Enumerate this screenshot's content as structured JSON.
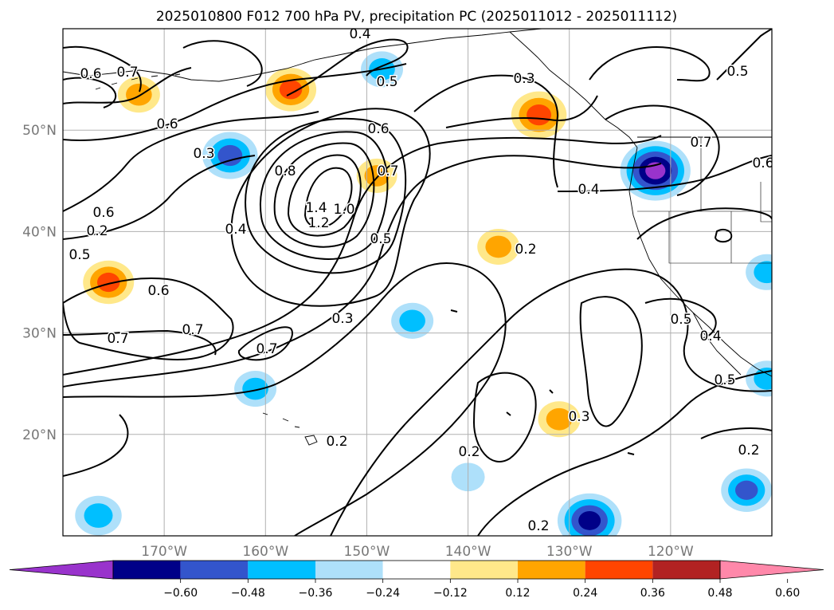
{
  "chart_data": {
    "type": "heatmap",
    "title": "2025010800 F012 700 hPa PV, precipitation PC (2025011012 - 2025011112)",
    "map": {
      "lon_range": [
        -180,
        -110
      ],
      "lat_range": [
        10,
        60
      ],
      "grid": true,
      "projection": "equirectangular"
    },
    "x_ticks": [
      {
        "value": -170,
        "label": "170°W"
      },
      {
        "value": -160,
        "label": "160°W"
      },
      {
        "value": -150,
        "label": "150°W"
      },
      {
        "value": -140,
        "label": "140°W"
      },
      {
        "value": -130,
        "label": "130°W"
      },
      {
        "value": -120,
        "label": "120°W"
      }
    ],
    "y_ticks": [
      {
        "value": 20,
        "label": "20°N"
      },
      {
        "value": 30,
        "label": "30°N"
      },
      {
        "value": 40,
        "label": "40°N"
      },
      {
        "value": 50,
        "label": "50°N"
      }
    ],
    "colorbar": {
      "location": "bottom",
      "extend": "both",
      "levels": [
        -0.6,
        -0.48,
        -0.36,
        -0.24,
        -0.12,
        0.12,
        0.24,
        0.36,
        0.48,
        0.6
      ],
      "labels": [
        "−0.60",
        "−0.48",
        "−0.36",
        "−0.24",
        "−0.12",
        "0.12",
        "0.24",
        "0.36",
        "0.48",
        "0.60"
      ],
      "colors": [
        "#9933cc",
        "#000088",
        "#3355cc",
        "#00bfff",
        "#aee0fa",
        "#ffffff",
        "#ffe88a",
        "#ffa500",
        "#ff4500",
        "#b22222",
        "#ff88aa"
      ]
    },
    "precip_anomalies": [
      {
        "lon": -172.5,
        "lat": 53.5,
        "value": 0.3
      },
      {
        "lon": -157.5,
        "lat": 54.0,
        "value": 0.4
      },
      {
        "lon": -163.5,
        "lat": 47.5,
        "value": -0.45
      },
      {
        "lon": -175.5,
        "lat": 35.0,
        "value": 0.4
      },
      {
        "lon": -148.5,
        "lat": 56.0,
        "value": -0.3
      },
      {
        "lon": -133.0,
        "lat": 51.5,
        "value": 0.45
      },
      {
        "lon": -121.5,
        "lat": 46.0,
        "value": -0.62
      },
      {
        "lon": -137.0,
        "lat": 38.5,
        "value": 0.3
      },
      {
        "lon": -149.0,
        "lat": 45.5,
        "value": 0.28
      },
      {
        "lon": -131.0,
        "lat": 21.5,
        "value": 0.3
      },
      {
        "lon": -161.0,
        "lat": 24.5,
        "value": -0.3
      },
      {
        "lon": -145.5,
        "lat": 31.2,
        "value": -0.3
      },
      {
        "lon": -128.0,
        "lat": 11.5,
        "value": -0.55
      },
      {
        "lon": -176.5,
        "lat": 12.0,
        "value": -0.35
      },
      {
        "lon": -112.5,
        "lat": 14.5,
        "value": -0.4
      },
      {
        "lon": -110.5,
        "lat": 36.0,
        "value": -0.3
      },
      {
        "lon": -110.5,
        "lat": 25.5,
        "value": -0.3
      },
      {
        "lon": -140.0,
        "lat": 15.8,
        "value": -0.2
      }
    ],
    "pv_contours": {
      "variable": "700 hPa PV",
      "labels_visible": [
        "0.2",
        "0.3",
        "0.4",
        "0.5",
        "0.6",
        "0.7",
        "0.8",
        "1.0",
        "1.2",
        "1.4"
      ],
      "maximum": {
        "lon": -155.5,
        "lat": 44.0,
        "value": 1.4
      }
    }
  }
}
